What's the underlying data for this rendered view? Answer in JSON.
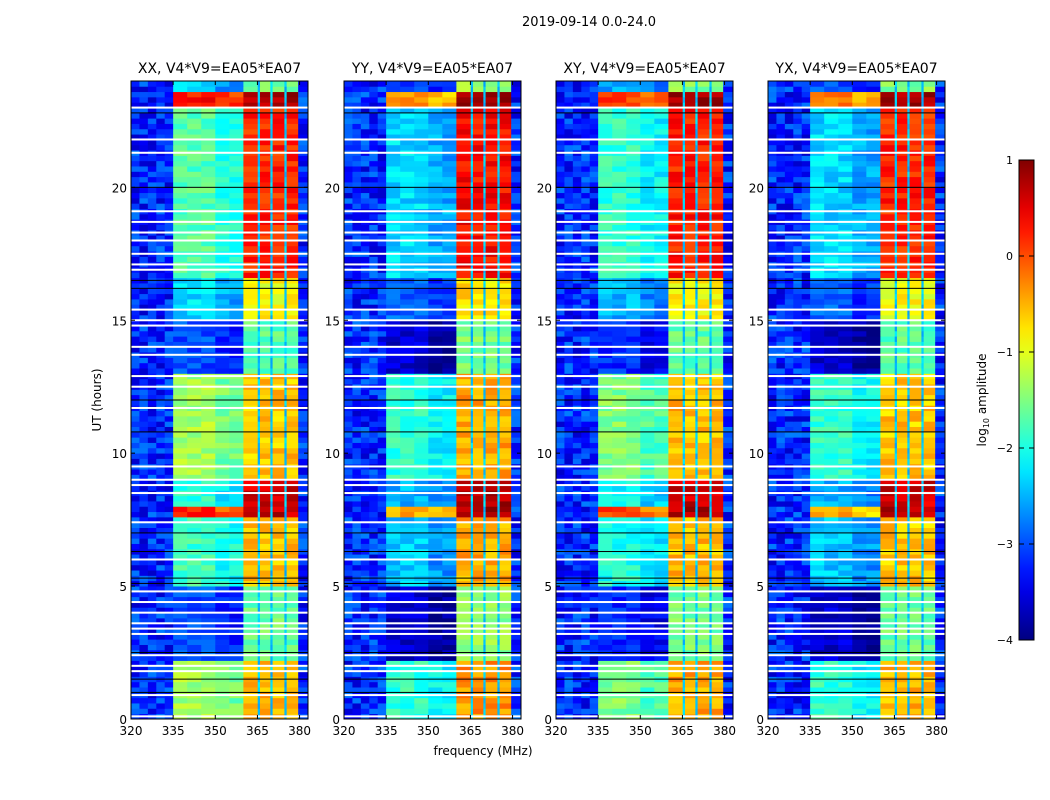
{
  "chart_data": {
    "type": "heatmap",
    "title": "2019-09-14 0.0-24.0",
    "xlabel": "frequency (MHz)",
    "ylabel": "UT (hours)",
    "xlim": [
      320,
      383
    ],
    "ylim": [
      0,
      24
    ],
    "xticks": [
      320,
      335,
      350,
      365,
      380
    ],
    "yticks": [
      0,
      5,
      10,
      15,
      20
    ],
    "colorbar": {
      "label_main": "log",
      "label_sub": "10",
      "label_rest": " amplitude",
      "colormap": "jet",
      "range": [
        -4,
        1
      ],
      "ticks": [
        1,
        0,
        -1,
        -2,
        -3,
        -4
      ],
      "tick_labels": [
        "1",
        "0",
        "−1",
        "−2",
        "−3",
        "−4"
      ]
    },
    "frequency_regions": {
      "background_low": [
        320,
        335
      ],
      "continuum": [
        335,
        360
      ],
      "rfi_band": [
        360,
        379.5
      ],
      "rfi_gaps_MHz": [
        365.5,
        370,
        375
      ],
      "background_high": [
        379.5,
        383
      ]
    },
    "time_segments": [
      {
        "t": [
          0,
          2.2
        ],
        "continuum": -1.3,
        "rfi": -0.5
      },
      {
        "t": [
          2.2,
          5.0
        ],
        "continuum": -3.0,
        "rfi": -1.6
      },
      {
        "t": [
          5.0,
          7.6
        ],
        "continuum": -1.8,
        "rfi": -0.6
      },
      {
        "t": [
          7.6,
          8.0
        ],
        "continuum": 0.2,
        "rfi": 0.7
      },
      {
        "t": [
          8.0,
          9.0
        ],
        "continuum": -1.9,
        "rfi": 0.6
      },
      {
        "t": [
          9.0,
          13.0
        ],
        "continuum": -1.3,
        "rfi": -0.6
      },
      {
        "t": [
          13.0,
          15.0
        ],
        "continuum": -3.0,
        "rfi": -1.7
      },
      {
        "t": [
          15.0,
          16.6
        ],
        "continuum": -2.3,
        "rfi": -0.9
      },
      {
        "t": [
          16.6,
          23.0
        ],
        "continuum": -1.7,
        "rfi": 0.2
      },
      {
        "t": [
          23.0,
          23.5
        ],
        "continuum": 0.3,
        "rfi": 0.8
      },
      {
        "t": [
          23.5,
          24.0
        ],
        "continuum": -2.4,
        "rfi": -1.5
      }
    ],
    "background_level": -3.2,
    "flagged_times_hours": [
      0.1,
      0.9,
      1.8,
      2.0,
      2.4,
      3.2,
      3.4,
      3.6,
      4.0,
      4.4,
      4.8,
      6.0,
      7.4,
      8.5,
      8.8,
      9.0,
      9.5,
      11.7,
      12.5,
      12.9,
      13.7,
      14.0,
      14.8,
      15.0,
      15.4,
      16.9,
      17.1,
      17.5,
      18.0,
      18.3,
      18.7,
      19.1,
      21.3,
      21.8,
      23.0
    ],
    "black_line_times_hours": [
      1.0,
      1.5,
      2.5,
      5.1,
      5.3,
      6.3,
      7.0,
      10.8,
      12.0,
      16.2,
      16.5,
      20.0,
      22.8
    ],
    "panels": [
      {
        "title": "XX, V4*V9=EA05*EA07",
        "continuum_offset": 0.0,
        "rfi_offset": 0.0
      },
      {
        "title": "YY, V4*V9=EA05*EA07",
        "continuum_offset": -0.6,
        "rfi_offset": 0.15
      },
      {
        "title": "XY, V4*V9=EA05*EA07",
        "continuum_offset": -0.2,
        "rfi_offset": 0.05
      },
      {
        "title": "YX, V4*V9=EA05*EA07",
        "continuum_offset": -0.6,
        "rfi_offset": 0.0
      }
    ]
  }
}
